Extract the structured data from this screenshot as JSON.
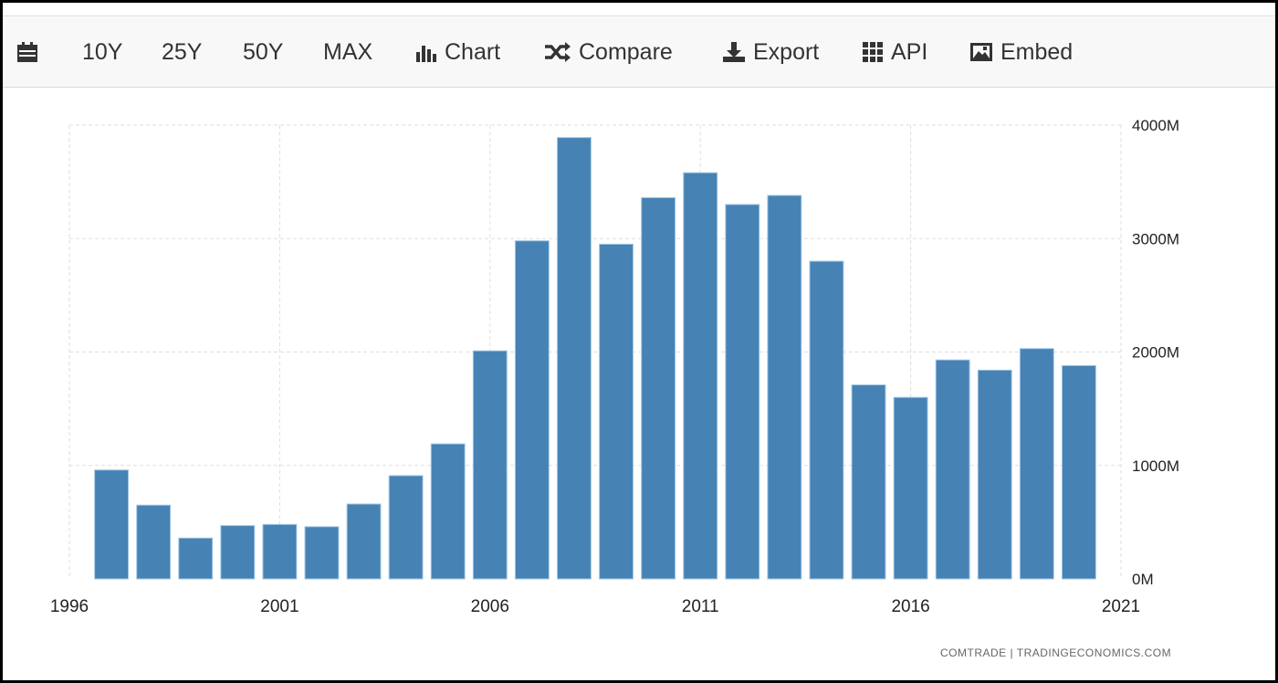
{
  "toolbar": {
    "items": [
      {
        "label": "",
        "icon": "calendar-icon"
      },
      {
        "label": "10Y"
      },
      {
        "label": "25Y"
      },
      {
        "label": "50Y"
      },
      {
        "label": "MAX"
      },
      {
        "label": "Chart",
        "icon": "bar-chart-icon"
      },
      {
        "label": "Compare",
        "icon": "shuffle-icon"
      },
      {
        "label": "Export",
        "icon": "download-icon"
      },
      {
        "label": "API",
        "icon": "grid-icon"
      },
      {
        "label": "Embed",
        "icon": "image-icon"
      }
    ]
  },
  "source_text": "COMTRADE | TRADINGECONOMICS.COM",
  "chart_data": {
    "type": "bar",
    "x": [
      1997,
      1998,
      1999,
      2000,
      2001,
      2002,
      2003,
      2004,
      2005,
      2006,
      2007,
      2008,
      2009,
      2010,
      2011,
      2012,
      2013,
      2014,
      2015,
      2016,
      2017,
      2018,
      2019,
      2020
    ],
    "values": [
      960,
      650,
      360,
      470,
      480,
      460,
      660,
      910,
      1190,
      2010,
      2980,
      3890,
      2950,
      3360,
      3580,
      3300,
      3380,
      2800,
      1710,
      1600,
      1930,
      1840,
      2030,
      1880
    ],
    "xlim": [
      1996,
      2021
    ],
    "x_ticks": [
      "1996",
      "2001",
      "2006",
      "2011",
      "2016",
      "2021"
    ],
    "ylim": [
      0,
      4000
    ],
    "y_ticks": [
      "0M",
      "1000M",
      "2000M",
      "3000M",
      "4000M"
    ],
    "y_axis_position": "right",
    "grid": true,
    "bar_color": "#4682b4"
  }
}
